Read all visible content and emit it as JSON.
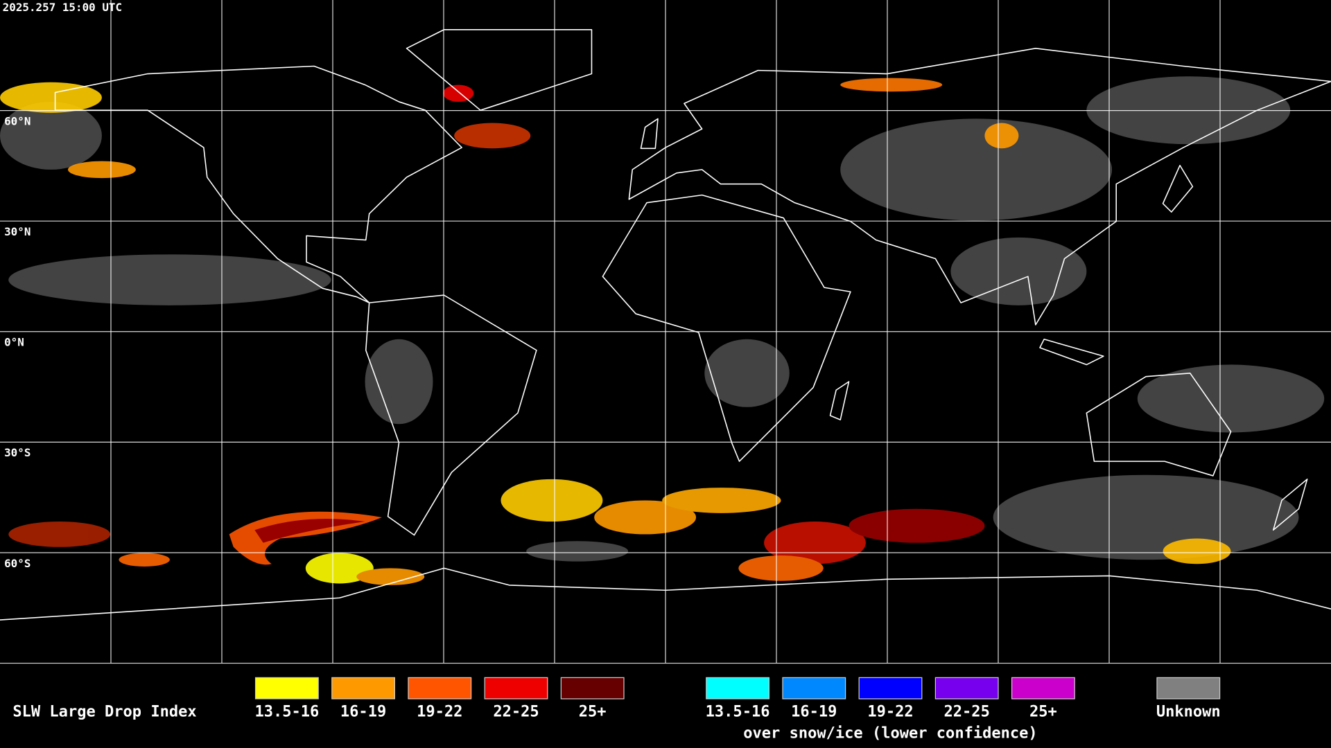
{
  "timestamp": "2025.257 15:00 UTC",
  "latitude_labels": [
    "60°N",
    "30°N",
    "0°N",
    "30°S",
    "60°S"
  ],
  "legend": {
    "title": "SLW Large Drop Index",
    "groups": [
      {
        "items": [
          {
            "label": "13.5-16",
            "color": "#ffff00"
          },
          {
            "label": "16-19",
            "color": "#ff9900"
          },
          {
            "label": "19-22",
            "color": "#ff5500"
          },
          {
            "label": "22-25",
            "color": "#ee0000"
          },
          {
            "label": "25+",
            "color": "#660000"
          }
        ]
      },
      {
        "items": [
          {
            "label": "13.5-16",
            "color": "#00ffff"
          },
          {
            "label": "16-19",
            "color": "#0088ff"
          },
          {
            "label": "19-22",
            "color": "#0000ff"
          },
          {
            "label": "22-25",
            "color": "#7700ee"
          },
          {
            "label": "25+",
            "color": "#cc00cc"
          }
        ],
        "note": "over snow/ice (lower confidence)"
      }
    ],
    "unknown": {
      "label": "Unknown",
      "color": "#808080"
    }
  }
}
